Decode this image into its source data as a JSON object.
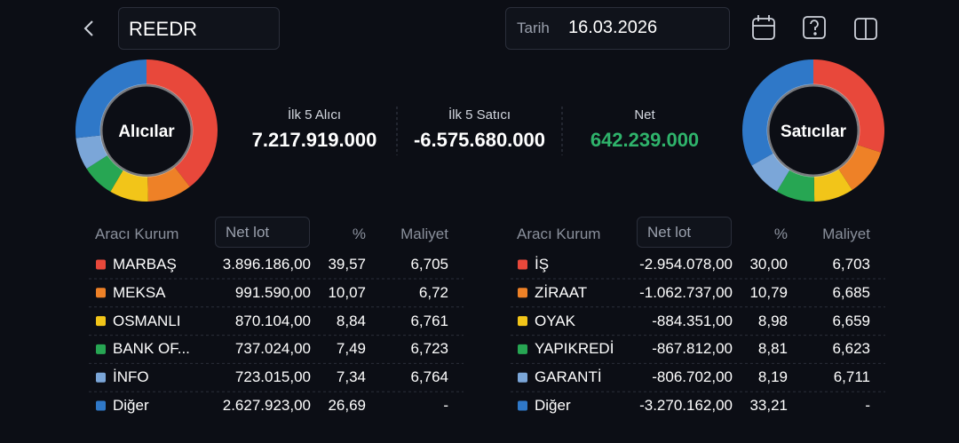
{
  "header": {
    "search": "REEDR",
    "date_label": "Tarih",
    "date": "16.03.2026"
  },
  "summary": {
    "buyers_label": "Alıcılar",
    "sellers_label": "Satıcılar",
    "stats": [
      {
        "label": "İlk 5 Alıcı",
        "value": "7.217.919.000",
        "color": "#ffffff"
      },
      {
        "label": "İlk 5 Satıcı",
        "value": "-6.575.680.000",
        "color": "#ffffff"
      },
      {
        "label": "Net",
        "value": "642.239.000",
        "color": "#2fb36b"
      }
    ]
  },
  "buyers": {
    "columns": [
      "Aracı Kurum",
      "Net lot",
      "%",
      "Maliyet"
    ],
    "rows": [
      {
        "name": "MARBAŞ",
        "color": "#e8483b",
        "net": "3.896.186,00",
        "pct": "39,57",
        "cost": "6,705"
      },
      {
        "name": "MEKSA",
        "color": "#ee8127",
        "net": "991.590,00",
        "pct": "10,07",
        "cost": "6,72"
      },
      {
        "name": "OSMANLI",
        "color": "#f2c519",
        "net": "870.104,00",
        "pct": "8,84",
        "cost": "6,761"
      },
      {
        "name": "BANK OF...",
        "color": "#27a653",
        "net": "737.024,00",
        "pct": "7,49",
        "cost": "6,723"
      },
      {
        "name": "İNFO",
        "color": "#7ba6d8",
        "net": "723.015,00",
        "pct": "7,34",
        "cost": "6,764"
      },
      {
        "name": "Diğer",
        "color": "#2f78c8",
        "net": "2.627.923,00",
        "pct": "26,69",
        "cost": "-"
      }
    ]
  },
  "sellers": {
    "columns": [
      "Aracı Kurum",
      "Net lot",
      "%",
      "Maliyet"
    ],
    "rows": [
      {
        "name": "İŞ",
        "color": "#e8483b",
        "net": "-2.954.078,00",
        "pct": "30,00",
        "cost": "6,703"
      },
      {
        "name": "ZİRAAT",
        "color": "#ee8127",
        "net": "-1.062.737,00",
        "pct": "10,79",
        "cost": "6,685"
      },
      {
        "name": "OYAK",
        "color": "#f2c519",
        "net": "-884.351,00",
        "pct": "8,98",
        "cost": "6,659"
      },
      {
        "name": "YAPIKREDİ",
        "color": "#27a653",
        "net": "-867.812,00",
        "pct": "8,81",
        "cost": "6,623"
      },
      {
        "name": "GARANTİ",
        "color": "#7ba6d8",
        "net": "-806.702,00",
        "pct": "8,19",
        "cost": "6,711"
      },
      {
        "name": "Diğer",
        "color": "#2f78c8",
        "net": "-3.270.162,00",
        "pct": "33,21",
        "cost": "-"
      }
    ]
  }
}
